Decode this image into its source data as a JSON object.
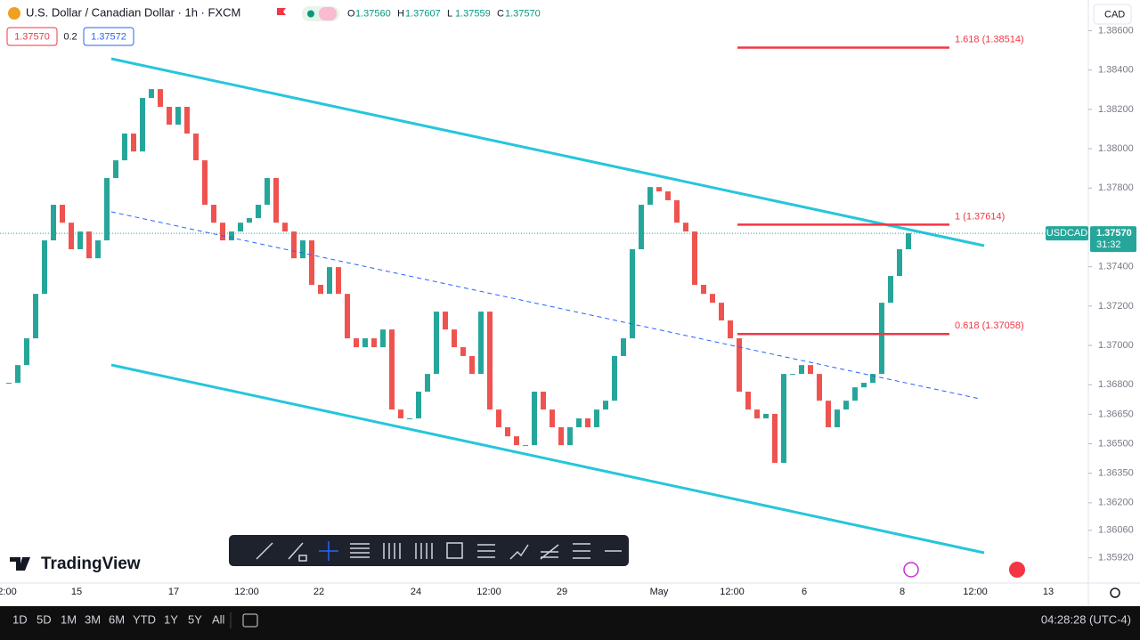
{
  "header": {
    "symbol_title": "U.S. Dollar / Canadian Dollar · 1h · FXCM",
    "ohlc": [
      {
        "label": "O",
        "value": "1.37560"
      },
      {
        "label": "H",
        "value": "1.37607"
      },
      {
        "label": "L",
        "value": "1.37559"
      },
      {
        "label": "C",
        "value": "1.37570"
      }
    ],
    "sell_price": "1.37570",
    "spread": "0.2",
    "buy_price": "1.37572",
    "currency": "CAD"
  },
  "chart_data": {
    "type": "candlestick",
    "close": [
      1.3681,
      1.369,
      1.37036,
      1.37262,
      1.37534,
      1.37715,
      1.37624,
      1.37489,
      1.37579,
      1.37443,
      1.37534,
      1.37851,
      1.37941,
      1.38077,
      1.37986,
      1.38258,
      1.38303,
      1.38213,
      1.38122,
      1.38213,
      1.38077,
      1.37941,
      1.37715,
      1.37624,
      1.37534,
      1.37579,
      1.37624,
      1.37647,
      1.37715,
      1.37851,
      1.37624,
      1.37579,
      1.37443,
      1.37534,
      1.37308,
      1.37262,
      1.37398,
      1.37262,
      1.37036,
      1.36991,
      1.37036,
      1.36991,
      1.37081,
      1.36674,
      1.36629,
      1.36629,
      1.36765,
      1.36855,
      1.37172,
      1.37081,
      1.36991,
      1.36946,
      1.36855,
      1.37172,
      1.36674,
      1.36584,
      1.36538,
      1.36493,
      1.36493,
      1.36765,
      1.36674,
      1.36584,
      1.36493,
      1.36584,
      1.36629,
      1.36584,
      1.36674,
      1.36719,
      1.36946,
      1.37036,
      1.37489,
      1.37715,
      1.37805,
      1.37783,
      1.37738,
      1.37624,
      1.37579,
      1.37308,
      1.37262,
      1.37217,
      1.37127,
      1.37036,
      1.36765,
      1.36674,
      1.36629,
      1.36652,
      1.36403,
      1.36855,
      1.36855,
      1.369,
      1.36855,
      1.36719,
      1.36584,
      1.36674,
      1.36719,
      1.36787,
      1.3681,
      1.36855,
      1.37217,
      1.37353,
      1.37489,
      1.3757
    ],
    "up_color": "#26a69a",
    "down_color": "#ef5350",
    "ylim": [
      1.35792,
      1.38756
    ],
    "yticks": [
      {
        "value": 1.386,
        "label": "1.38600"
      },
      {
        "value": 1.384,
        "label": "1.38400"
      },
      {
        "value": 1.382,
        "label": "1.38200"
      },
      {
        "value": 1.38,
        "label": "1.38000"
      },
      {
        "value": 1.378,
        "label": "1.37800"
      },
      {
        "value": 1.374,
        "label": "1.37400"
      },
      {
        "value": 1.372,
        "label": "1.37200"
      },
      {
        "value": 1.37,
        "label": "1.37000"
      },
      {
        "value": 1.368,
        "label": "1.36800"
      },
      {
        "value": 1.3665,
        "label": "1.36650"
      },
      {
        "value": 1.365,
        "label": "1.36500"
      },
      {
        "value": 1.3635,
        "label": "1.36350"
      },
      {
        "value": 1.362,
        "label": "1.36200"
      },
      {
        "value": 1.3606,
        "label": "1.36060"
      },
      {
        "value": 1.3592,
        "label": "1.35920"
      }
    ],
    "x_labels": [
      "2:00",
      "15",
      "17",
      "12:00",
      "22",
      "24",
      "12:00",
      "29",
      "May",
      "12:00",
      "6",
      "8",
      "12:00",
      "13"
    ],
    "fib_levels": [
      {
        "label": "1.618 (1.38514)",
        "value": 1.38514
      },
      {
        "label": "1 (1.37614)",
        "value": 1.37614
      },
      {
        "label": "0.618 (1.37058)",
        "value": 1.37058
      }
    ],
    "fib_color": "#f23645",
    "last_price_label": {
      "symbol": "USDCAD",
      "price": "1.37570",
      "countdown": "31:32"
    }
  },
  "footer": {
    "brand": "TradingView",
    "ranges": [
      "1D",
      "5D",
      "1M",
      "3M",
      "6M",
      "YTD",
      "1Y",
      "5Y",
      "All"
    ],
    "clock": "04:28:28 (UTC-4)"
  }
}
